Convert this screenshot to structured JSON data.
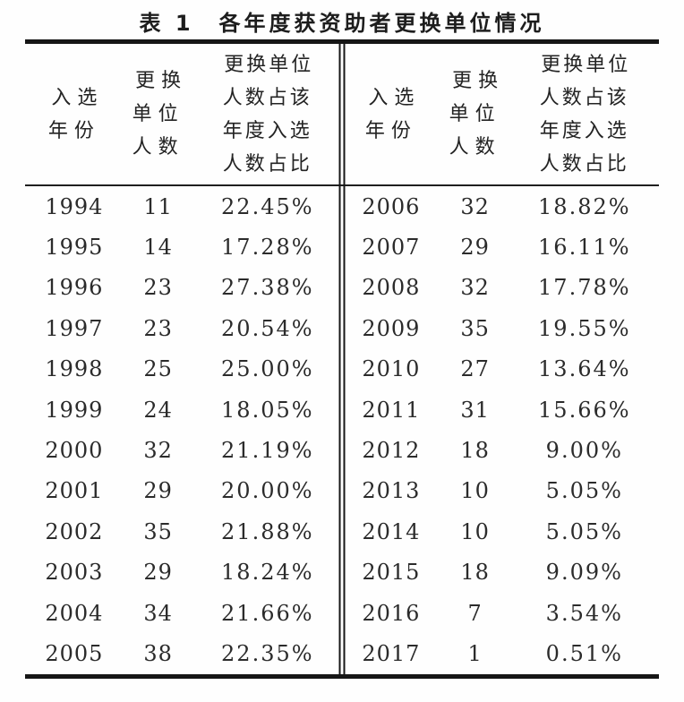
{
  "title": "表 1　各年度获资助者更换单位情况",
  "colors": {
    "text": "#2b2b2b",
    "rule": "#161616",
    "background": "#fefefe"
  },
  "table": {
    "headers": {
      "year": "入选\n年份",
      "count": "更换\n单位\n人数",
      "pct": "更换单位\n人数占该\n年度入选\n人数占比"
    },
    "left_rows": [
      {
        "year": "1994",
        "count": "11",
        "pct": "22.45%"
      },
      {
        "year": "1995",
        "count": "14",
        "pct": "17.28%"
      },
      {
        "year": "1996",
        "count": "23",
        "pct": "27.38%"
      },
      {
        "year": "1997",
        "count": "23",
        "pct": "20.54%"
      },
      {
        "year": "1998",
        "count": "25",
        "pct": "25.00%"
      },
      {
        "year": "1999",
        "count": "24",
        "pct": "18.05%"
      },
      {
        "year": "2000",
        "count": "32",
        "pct": "21.19%"
      },
      {
        "year": "2001",
        "count": "29",
        "pct": "20.00%"
      },
      {
        "year": "2002",
        "count": "35",
        "pct": "21.88%"
      },
      {
        "year": "2003",
        "count": "29",
        "pct": "18.24%"
      },
      {
        "year": "2004",
        "count": "34",
        "pct": "21.66%"
      },
      {
        "year": "2005",
        "count": "38",
        "pct": "22.35%"
      }
    ],
    "right_rows": [
      {
        "year": "2006",
        "count": "32",
        "pct": "18.82%"
      },
      {
        "year": "2007",
        "count": "29",
        "pct": "16.11%"
      },
      {
        "year": "2008",
        "count": "32",
        "pct": "17.78%"
      },
      {
        "year": "2009",
        "count": "35",
        "pct": "19.55%"
      },
      {
        "year": "2010",
        "count": "27",
        "pct": "13.64%"
      },
      {
        "year": "2011",
        "count": "31",
        "pct": "15.66%"
      },
      {
        "year": "2012",
        "count": "18",
        "pct": "9.00%"
      },
      {
        "year": "2013",
        "count": "10",
        "pct": "5.05%"
      },
      {
        "year": "2014",
        "count": "10",
        "pct": "5.05%"
      },
      {
        "year": "2015",
        "count": "18",
        "pct": "9.09%"
      },
      {
        "year": "2016",
        "count": "7",
        "pct": "3.54%"
      },
      {
        "year": "2017",
        "count": "1",
        "pct": "0.51%"
      }
    ]
  },
  "chart_data": {
    "type": "table",
    "title": "表 1　各年度获资助者更换单位情况",
    "columns": [
      "入选年份",
      "更换单位人数",
      "更换单位人数占该年度入选人数占比"
    ],
    "rows": [
      [
        1994,
        11,
        "22.45%"
      ],
      [
        1995,
        14,
        "17.28%"
      ],
      [
        1996,
        23,
        "27.38%"
      ],
      [
        1997,
        23,
        "20.54%"
      ],
      [
        1998,
        25,
        "25.00%"
      ],
      [
        1999,
        24,
        "18.05%"
      ],
      [
        2000,
        32,
        "21.19%"
      ],
      [
        2001,
        29,
        "20.00%"
      ],
      [
        2002,
        35,
        "21.88%"
      ],
      [
        2003,
        29,
        "18.24%"
      ],
      [
        2004,
        34,
        "21.66%"
      ],
      [
        2005,
        38,
        "22.35%"
      ],
      [
        2006,
        32,
        "18.82%"
      ],
      [
        2007,
        29,
        "16.11%"
      ],
      [
        2008,
        32,
        "17.78%"
      ],
      [
        2009,
        35,
        "19.55%"
      ],
      [
        2010,
        27,
        "13.64%"
      ],
      [
        2011,
        31,
        "15.66%"
      ],
      [
        2012,
        18,
        "9.00%"
      ],
      [
        2013,
        10,
        "5.05%"
      ],
      [
        2014,
        10,
        "5.05%"
      ],
      [
        2015,
        18,
        "9.09%"
      ],
      [
        2016,
        7,
        "3.54%"
      ],
      [
        2017,
        1,
        "0.51%"
      ]
    ],
    "layout": "two side-by-side panels split by a double vertical rule; left panel years 1994-2005, right panel years 2006-2017; book-style table with thick top/bottom rules and thin rule under header"
  }
}
